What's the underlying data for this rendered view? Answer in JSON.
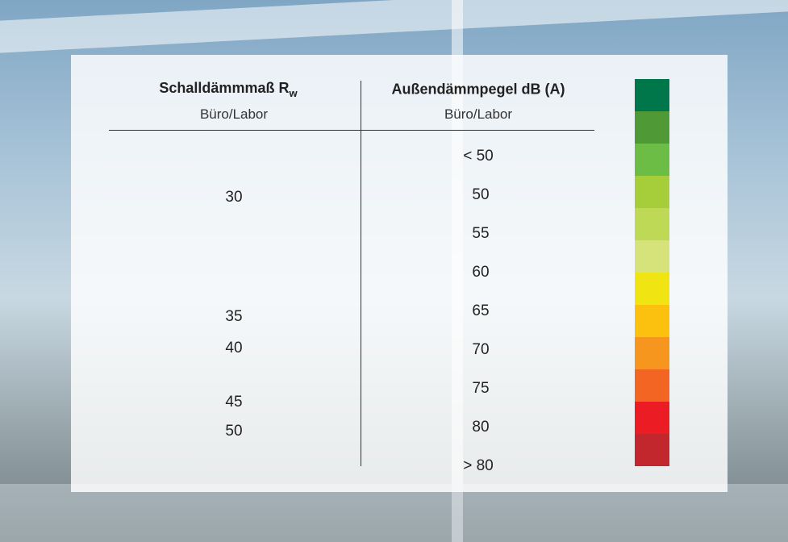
{
  "left_column": {
    "title": "Schalldämmmaß R",
    "title_subscript": "w",
    "subtitle": "Büro/Labor",
    "values": [
      30,
      35,
      40,
      45,
      50
    ]
  },
  "right_column": {
    "title": "Außendämmpegel dB (A)",
    "subtitle": "Büro/Labor",
    "values": [
      "< 50",
      50,
      55,
      60,
      65,
      70,
      75,
      80,
      "> 80"
    ]
  }
}
